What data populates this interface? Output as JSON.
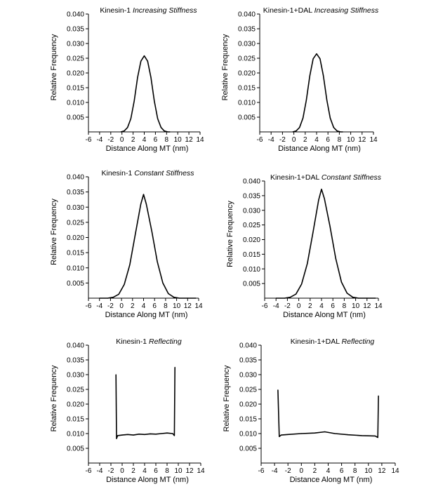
{
  "figure": {
    "panels_layout": "3 rows x 2 columns"
  },
  "chart_data": [
    {
      "type": "line",
      "title": "Kinesin-1",
      "title_italic": "Increasing Stiffness",
      "xlabel": "Distance Along MT (nm)",
      "ylabel": "Relative Frequency",
      "xlim": [
        -6,
        14
      ],
      "ylim": [
        0,
        0.04
      ],
      "xticks": [
        "-6",
        "-4",
        "-2",
        "0",
        "2",
        "4",
        "6",
        "8",
        "10",
        "12",
        "14"
      ],
      "yticks": [
        "0.005",
        "0.010",
        "0.015",
        "0.020",
        "0.025",
        "0.030",
        "0.035",
        "0.040"
      ],
      "x": [
        -0.2,
        0.4,
        1.0,
        1.6,
        2.2,
        2.8,
        3.4,
        4.0,
        4.6,
        5.2,
        5.8,
        6.4,
        7.0,
        7.6,
        8.2,
        8.6
      ],
      "y": [
        0.0,
        0.0003,
        0.0015,
        0.0045,
        0.0105,
        0.0185,
        0.024,
        0.0258,
        0.024,
        0.0185,
        0.0105,
        0.0045,
        0.0015,
        0.0003,
        0.0,
        0.0
      ]
    },
    {
      "type": "line",
      "title": "Kinesin-1+DAL",
      "title_italic": "Increasing Stiffness",
      "xlabel": "Distance Along MT (nm)",
      "ylabel": "Relative Frequency",
      "xlim": [
        -6,
        14
      ],
      "ylim": [
        0,
        0.04
      ],
      "xticks": [
        "-6",
        "-4",
        "-2",
        "0",
        "2",
        "4",
        "6",
        "8",
        "10",
        "12",
        "14"
      ],
      "yticks": [
        "0.005",
        "0.010",
        "0.015",
        "0.020",
        "0.025",
        "0.030",
        "0.035",
        "0.040"
      ],
      "x": [
        -0.2,
        0.4,
        1.0,
        1.6,
        2.2,
        2.8,
        3.4,
        4.0,
        4.6,
        5.2,
        5.8,
        6.4,
        7.0,
        7.6,
        8.2,
        8.6
      ],
      "y": [
        0.0,
        0.0003,
        0.0015,
        0.0047,
        0.0108,
        0.019,
        0.0248,
        0.0265,
        0.0248,
        0.019,
        0.0108,
        0.0047,
        0.0015,
        0.0003,
        0.0,
        0.0
      ]
    },
    {
      "type": "line",
      "title": "Kinesin-1",
      "title_italic": "Constant Stiffness",
      "xlabel": "Distance Along MT (nm)",
      "ylabel": "Relative Frequency",
      "xlim": [
        -6,
        14
      ],
      "ylim": [
        0,
        0.04
      ],
      "xticks": [
        "-6",
        "-4",
        "-2",
        "0",
        "2",
        "4",
        "6",
        "8",
        "10",
        "12",
        "14"
      ],
      "yticks": [
        "0.005",
        "0.010",
        "0.015",
        "0.020",
        "0.025",
        "0.030",
        "0.035",
        "0.040"
      ],
      "x": [
        -4.0,
        -2.5,
        -1.5,
        -0.5,
        0.5,
        1.5,
        2.5,
        3.5,
        4.0,
        4.5,
        5.5,
        6.5,
        7.5,
        8.5,
        9.5,
        10.5,
        12.0,
        13.5
      ],
      "y": [
        0.0,
        0.0,
        0.0003,
        0.0013,
        0.0045,
        0.011,
        0.021,
        0.031,
        0.0342,
        0.031,
        0.022,
        0.012,
        0.005,
        0.0015,
        0.0003,
        0.0,
        0.0,
        0.0
      ]
    },
    {
      "type": "line",
      "title": "Kinesin-1+DAL",
      "title_italic": "Constant Stiffness",
      "xlabel": "Distance Along MT (nm)",
      "ylabel": "Relative Frequency",
      "xlim": [
        -6,
        14
      ],
      "ylim": [
        0,
        0.04
      ],
      "xticks": [
        "-6",
        "-4",
        "-2",
        "0",
        "2",
        "4",
        "6",
        "8",
        "10",
        "12",
        "14"
      ],
      "yticks": [
        "0.005",
        "0.010",
        "0.015",
        "0.020",
        "0.025",
        "0.030",
        "0.035",
        "0.040"
      ],
      "x": [
        -4.0,
        -2.5,
        -1.5,
        -0.5,
        0.5,
        1.5,
        2.5,
        3.5,
        4.0,
        4.5,
        5.5,
        6.5,
        7.5,
        8.5,
        9.5,
        10.5,
        12.0,
        13.5
      ],
      "y": [
        0.0,
        0.0,
        0.0003,
        0.0014,
        0.0048,
        0.0118,
        0.0225,
        0.0335,
        0.0372,
        0.034,
        0.0245,
        0.0135,
        0.0055,
        0.0017,
        0.0003,
        0.0,
        0.0,
        0.0
      ]
    },
    {
      "type": "line",
      "title": "Kinesin-1",
      "title_italic": "Reflecting",
      "xlabel": "Distance Along MT (nm)",
      "ylabel": "Relative Frequency",
      "xlim": [
        -6,
        14
      ],
      "ylim": [
        0,
        0.04
      ],
      "xticks": [
        "-6",
        "-4",
        "-2",
        "0",
        "2",
        "4",
        "6",
        "8",
        "10",
        "12",
        "14"
      ],
      "yticks": [
        "0.005",
        "0.010",
        "0.015",
        "0.020",
        "0.025",
        "0.030",
        "0.035",
        "0.040"
      ],
      "x": [
        -1.1,
        -1.0,
        -0.8,
        0.0,
        1.0,
        2.0,
        3.0,
        4.0,
        5.0,
        6.0,
        7.0,
        8.0,
        9.0,
        9.3,
        9.4
      ],
      "y": [
        0.03,
        0.0083,
        0.0093,
        0.0095,
        0.0097,
        0.0095,
        0.0098,
        0.0097,
        0.0099,
        0.0098,
        0.01,
        0.0102,
        0.01,
        0.0093,
        0.0325
      ]
    },
    {
      "type": "line",
      "title": "Kinesin-1+DAL",
      "title_italic": "Reflecting",
      "xlabel": "Distance Along MT (nm)",
      "ylabel": "Relative Frequency",
      "xlim": [
        -6,
        14
      ],
      "ylim": [
        0,
        0.04
      ],
      "xticks": [
        "-6",
        "-4",
        "-2",
        "0",
        "2",
        "4",
        "6",
        "8",
        "10",
        "12",
        "14"
      ],
      "yticks": [
        "0.005",
        "0.010",
        "0.015",
        "0.020",
        "0.025",
        "0.030",
        "0.035",
        "0.040"
      ],
      "x": [
        -3.5,
        -3.3,
        -3.0,
        -2.0,
        0.0,
        2.0,
        3.5,
        5.0,
        7.0,
        9.0,
        11.0,
        11.4,
        11.5
      ],
      "y": [
        0.0248,
        0.009,
        0.0095,
        0.0097,
        0.01,
        0.0102,
        0.0106,
        0.01,
        0.0096,
        0.0093,
        0.0092,
        0.0087,
        0.0228
      ]
    }
  ]
}
